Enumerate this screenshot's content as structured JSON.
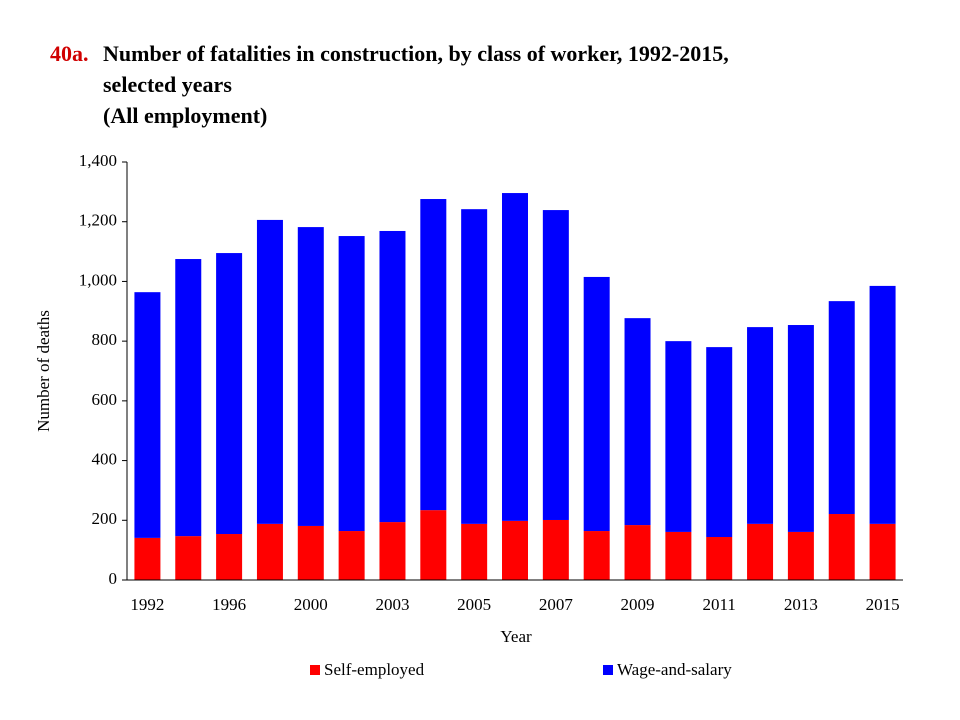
{
  "chart_data": {
    "type": "stacked_bar",
    "title_number": "40a.",
    "title_lines": [
      "Number of fatalities in construction, by class of worker, 1992-2015,",
      "selected years",
      "(All employment)"
    ],
    "x_label": "Year",
    "y_label": "Number of deaths",
    "categories": [
      "1992",
      null,
      "1996",
      null,
      "2000",
      null,
      "2003",
      null,
      "2005",
      null,
      "2007",
      null,
      "2009",
      null,
      "2011",
      null,
      "2013",
      null,
      "2015"
    ],
    "series": [
      {
        "name": "Self-employed",
        "color": "#ff0000",
        "values": [
          141,
          147,
          154,
          188,
          181,
          164,
          194,
          234,
          188,
          198,
          201,
          164,
          184,
          161,
          144,
          188,
          161,
          221,
          188
        ]
      },
      {
        "name": "Wage-and-salary",
        "color": "#0000ff",
        "values": [
          823,
          928,
          941,
          1018,
          1001,
          988,
          975,
          1042,
          1054,
          1098,
          1038,
          851,
          693,
          639,
          636,
          659,
          693,
          713,
          797
        ]
      }
    ],
    "ylim": [
      0,
      1400
    ],
    "yticks": [
      0,
      200,
      400,
      600,
      800,
      {
        "value": 1000,
        "label": "1,000"
      },
      {
        "value": 1200,
        "label": "1,200"
      },
      {
        "value": 1400,
        "label": "1,400"
      }
    ],
    "legend": "bottom"
  }
}
